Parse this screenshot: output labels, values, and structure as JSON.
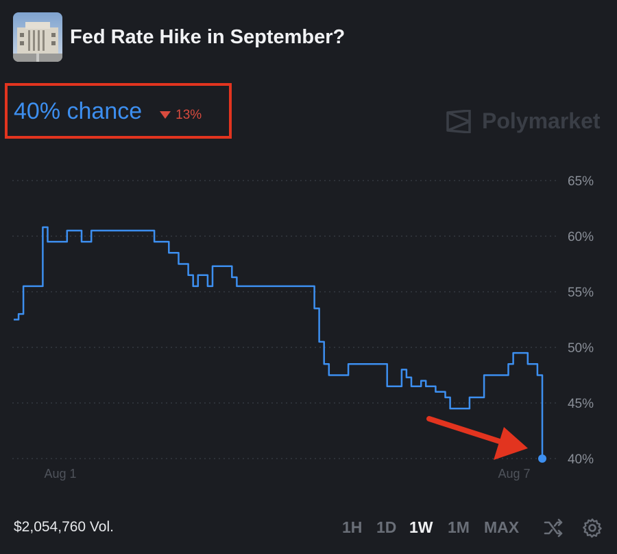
{
  "market": {
    "title": "Fed Rate Hike in September?",
    "chance": "40% chance",
    "delta": "13%",
    "brand": "Polymarket",
    "volume": "$2,054,760 Vol."
  },
  "controls": {
    "ranges": [
      "1H",
      "1D",
      "1W",
      "1M",
      "MAX"
    ],
    "active_range": "1W",
    "icons": [
      "shuffle-icon",
      "gear-icon"
    ]
  },
  "colors": {
    "background": "#1b1d22",
    "series": "#3d8ff0",
    "negative": "#d94b3e",
    "highlight_box": "#e2341f",
    "annotation_arrow": "#e2341f"
  },
  "chart_data": {
    "type": "line",
    "title": "",
    "xlabel": "",
    "ylabel": "",
    "x_ticks": [
      "Aug 1",
      "Aug 7"
    ],
    "y_ticks": [
      "65%",
      "60%",
      "55%",
      "50%",
      "45%",
      "40%"
    ],
    "ylim": [
      40,
      65
    ],
    "grid": "horizontal dotted",
    "y_axis_position": "right",
    "annotation": "red arrow pointing to last point",
    "series": [
      {
        "values": [
          52.5,
          53,
          55.5,
          55.5,
          55.5,
          55.5,
          60.8,
          59.5,
          59.5,
          59.5,
          59.5,
          60.5,
          60.5,
          60.5,
          59.5,
          59.5,
          60.5,
          60.5,
          60.5,
          60.5,
          60.5,
          60.5,
          60.5,
          60.5,
          60.5,
          60.5,
          60.5,
          60.5,
          60.5,
          59.5,
          59.5,
          59.5,
          58.5,
          58.5,
          57.5,
          57.5,
          56.5,
          55.5,
          56.5,
          56.5,
          55.5,
          57.3,
          57.3,
          57.3,
          57.3,
          56.3,
          55.5,
          55.5,
          55.5,
          55.5,
          55.5,
          55.5,
          55.5,
          55.5,
          55.5,
          55.5,
          55.5,
          55.5,
          55.5,
          55.5,
          55.5,
          55.5,
          53.5,
          50.5,
          48.5,
          47.5,
          47.5,
          47.5,
          47.5,
          48.5,
          48.5,
          48.5,
          48.5,
          48.5,
          48.5,
          48.5,
          48.5,
          46.5,
          46.5,
          46.5,
          48,
          47.3,
          46.5,
          46.5,
          47,
          46.5,
          46.5,
          46,
          46,
          45.5,
          44.5,
          44.5,
          44.5,
          44.5,
          45.5,
          45.5,
          45.5,
          47.5,
          47.5,
          47.5,
          47.5,
          47.5,
          48.5,
          49.5,
          49.5,
          49.5,
          48.5,
          48.5,
          47.5,
          40
        ]
      }
    ]
  }
}
